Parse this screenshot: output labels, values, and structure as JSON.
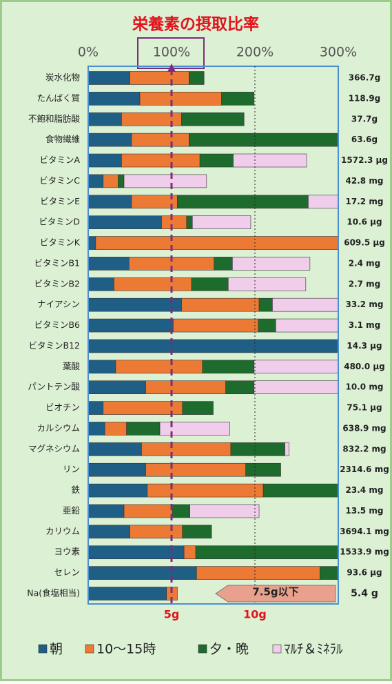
{
  "chart_data": {
    "type": "stacked-bar-horizontal",
    "title": "栄養素の摂取比率",
    "categories": [
      "炭水化物",
      "たんぱく質",
      "不飽和脂肪酸",
      "食物繊維",
      "ビタミンA",
      "ビタミンC",
      "ビタミンE",
      "ビタミンD",
      "ビタミンK",
      "ビタミンB1",
      "ビタミンB2",
      "ナイアシン",
      "ビタミンB6",
      "ビタミンB12",
      "葉酸",
      "パントテン酸",
      "ビオチン",
      "カルシウム",
      "マグネシウム",
      "リン",
      "鉄",
      "亜鉛",
      "カリウム",
      "ヨウ素",
      "セレン",
      "Na(食塩相当)"
    ],
    "amounts": [
      "366.7g",
      "118.9g",
      "37.7g",
      "63.6g",
      "1572.3 μg",
      "42.8 mg",
      "17.2 mg",
      "10.6 μg",
      "609.5 μg",
      "2.4 mg",
      "2.7 mg",
      "33.2 mg",
      "3.1 mg",
      "14.3 μg",
      "480.0 μg",
      "10.0 mg",
      "75.1 μg",
      "638.9 mg",
      "832.2 mg",
      "2314.6 mg",
      "23.4 mg",
      "13.5 mg",
      "3694.1 mg",
      "1533.9 mg",
      "93.6 μg",
      "5.4 g"
    ],
    "series": [
      {
        "name": "朝",
        "color": "#1f5f86",
        "values": [
          50,
          62,
          40,
          52,
          40,
          18,
          52,
          88,
          9,
          49,
          31,
          112,
          102,
          300,
          33,
          69,
          18,
          20,
          64,
          69,
          71,
          43,
          50,
          115,
          130,
          94
        ]
      },
      {
        "name": "10～15時",
        "color": "#ec7a35",
        "values": [
          71,
          98,
          72,
          69,
          94,
          18,
          55,
          30,
          291,
          102,
          93,
          93,
          102,
          null,
          104,
          96,
          95,
          26,
          107,
          120,
          139,
          58,
          63,
          14,
          148,
          13
        ]
      },
      {
        "name": "夕・晩",
        "color": "#1e6b2e",
        "values": [
          18,
          39,
          75,
          179,
          40,
          7,
          157,
          7,
          null,
          22,
          44,
          16,
          21,
          null,
          62,
          34,
          37,
          40,
          65,
          42,
          90,
          21,
          35,
          171,
          22,
          null
        ]
      },
      {
        "name": "ﾏﾙﾁ＆ﾐﾈﾗﾙ",
        "color": "#f0cdea",
        "values": [
          null,
          null,
          null,
          null,
          88,
          99,
          36,
          70,
          null,
          93,
          93,
          79,
          75,
          null,
          101,
          101,
          null,
          84,
          5,
          null,
          null,
          83,
          null,
          null,
          null,
          null
        ]
      }
    ],
    "xlim": [
      0,
      300
    ],
    "xticks": [
      {
        "value": 0,
        "label": "0%"
      },
      {
        "value": 100,
        "label": "100%"
      },
      {
        "value": 200,
        "label": "200%"
      },
      {
        "value": 300,
        "label": "300%"
      }
    ],
    "na_ticks": [
      {
        "value": 100,
        "label": "5g"
      },
      {
        "value": 200,
        "label": "10g"
      }
    ],
    "annotation": "7.5g以下"
  }
}
